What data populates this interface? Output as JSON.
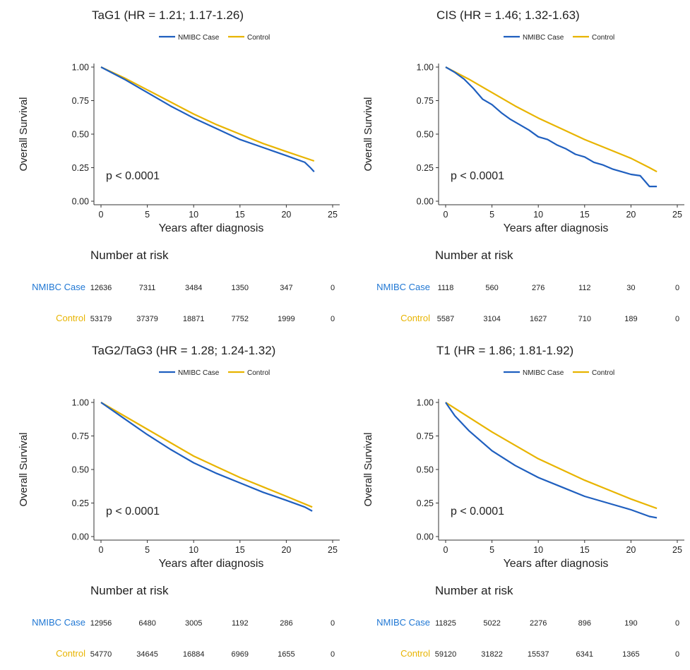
{
  "chart_data": [
    {
      "type": "line",
      "title": "TaG1 (HR = 1.21; 1.17-1.26)",
      "xlabel": "Years after diagnosis",
      "ylabel": "Overall Survival",
      "xlim": [
        0,
        25
      ],
      "ylim": [
        0,
        1
      ],
      "xticks": [
        "0",
        "5",
        "10",
        "15",
        "20",
        "25"
      ],
      "yticks": [
        "0.00",
        "0.25",
        "0.50",
        "0.75",
        "1.00"
      ],
      "legend_position": "top",
      "grid": false,
      "p_value": "p < 0.0001",
      "series": [
        {
          "name": "NMIBC Case",
          "color": "#1f5fbf",
          "x": [
            0,
            2.5,
            5,
            7.5,
            10,
            12.5,
            15,
            17.5,
            20,
            22,
            22.6,
            23
          ],
          "y": [
            1.0,
            0.91,
            0.81,
            0.71,
            0.62,
            0.54,
            0.46,
            0.4,
            0.34,
            0.29,
            0.25,
            0.22
          ]
        },
        {
          "name": "Control",
          "color": "#e8b400",
          "x": [
            0,
            2.5,
            5,
            7.5,
            10,
            12.5,
            15,
            17.5,
            20,
            23
          ],
          "y": [
            1.0,
            0.92,
            0.83,
            0.74,
            0.65,
            0.57,
            0.5,
            0.43,
            0.37,
            0.3
          ]
        }
      ],
      "risk_table": {
        "title": "Number at risk",
        "times": [
          0,
          5,
          10,
          15,
          20,
          25
        ],
        "rows": [
          {
            "label": "NMIBC Case",
            "color": "#1f77d4",
            "values": [
              "12636",
              "7311",
              "3484",
              "1350",
              "347",
              "0"
            ]
          },
          {
            "label": "Control",
            "color": "#e8b400",
            "values": [
              "53179",
              "37379",
              "18871",
              "7752",
              "1999",
              "0"
            ]
          }
        ]
      }
    },
    {
      "type": "line",
      "title": "CIS (HR = 1.46; 1.32-1.63)",
      "xlabel": "Years after diagnosis",
      "ylabel": "Overall Survival",
      "xlim": [
        0,
        25
      ],
      "ylim": [
        0,
        1
      ],
      "xticks": [
        "0",
        "5",
        "10",
        "15",
        "20",
        "25"
      ],
      "yticks": [
        "0.00",
        "0.25",
        "0.50",
        "0.75",
        "1.00"
      ],
      "legend_position": "top",
      "grid": false,
      "p_value": "p < 0.0001",
      "series": [
        {
          "name": "NMIBC Case",
          "color": "#1f5fbf",
          "x": [
            0,
            1,
            2,
            3,
            4,
            5,
            6,
            7,
            8,
            9,
            10,
            11,
            12,
            13,
            14,
            15,
            16,
            17,
            18,
            19,
            20,
            21,
            21.5,
            22,
            22.8
          ],
          "y": [
            1.0,
            0.96,
            0.91,
            0.84,
            0.76,
            0.72,
            0.66,
            0.61,
            0.57,
            0.53,
            0.48,
            0.46,
            0.42,
            0.39,
            0.35,
            0.33,
            0.29,
            0.27,
            0.24,
            0.22,
            0.2,
            0.19,
            0.15,
            0.11,
            0.11
          ]
        },
        {
          "name": "Control",
          "color": "#e8b400",
          "x": [
            0,
            2.5,
            5,
            7.5,
            10,
            12.5,
            15,
            17.5,
            20,
            22,
            22.8
          ],
          "y": [
            1.0,
            0.91,
            0.81,
            0.71,
            0.62,
            0.54,
            0.46,
            0.39,
            0.32,
            0.25,
            0.22
          ]
        }
      ],
      "risk_table": {
        "title": "Number at risk",
        "times": [
          0,
          5,
          10,
          15,
          20,
          25
        ],
        "rows": [
          {
            "label": "NMIBC Case",
            "color": "#1f77d4",
            "values": [
              "1118",
              "560",
              "276",
              "112",
              "30",
              "0"
            ]
          },
          {
            "label": "Control",
            "color": "#e8b400",
            "values": [
              "5587",
              "3104",
              "1627",
              "710",
              "189",
              "0"
            ]
          }
        ]
      }
    },
    {
      "type": "line",
      "title": "TaG2/TaG3 (HR = 1.28; 1.24-1.32)",
      "xlabel": "Years after diagnosis",
      "ylabel": "Overall Survival",
      "xlim": [
        0,
        25
      ],
      "ylim": [
        0,
        1
      ],
      "xticks": [
        "0",
        "5",
        "10",
        "15",
        "20",
        "25"
      ],
      "yticks": [
        "0.00",
        "0.25",
        "0.50",
        "0.75",
        "1.00"
      ],
      "legend_position": "top",
      "grid": false,
      "p_value": "p < 0.0001",
      "series": [
        {
          "name": "NMIBC Case",
          "color": "#1f5fbf",
          "x": [
            0,
            2.5,
            5,
            7.5,
            10,
            12.5,
            15,
            17.5,
            20,
            22,
            22.8
          ],
          "y": [
            1.0,
            0.88,
            0.76,
            0.65,
            0.55,
            0.47,
            0.4,
            0.33,
            0.27,
            0.22,
            0.19
          ]
        },
        {
          "name": "Control",
          "color": "#e8b400",
          "x": [
            0,
            2.5,
            5,
            7.5,
            10,
            12.5,
            15,
            17.5,
            20,
            22.8
          ],
          "y": [
            1.0,
            0.9,
            0.8,
            0.7,
            0.6,
            0.52,
            0.44,
            0.37,
            0.3,
            0.22
          ]
        }
      ],
      "risk_table": {
        "title": "Number at risk",
        "times": [
          0,
          5,
          10,
          15,
          20,
          25
        ],
        "rows": [
          {
            "label": "NMIBC Case",
            "color": "#1f77d4",
            "values": [
              "12956",
              "6480",
              "3005",
              "1192",
              "286",
              "0"
            ]
          },
          {
            "label": "Control",
            "color": "#e8b400",
            "values": [
              "54770",
              "34645",
              "16884",
              "6969",
              "1655",
              "0"
            ]
          }
        ]
      }
    },
    {
      "type": "line",
      "title": "T1 (HR = 1.86; 1.81-1.92)",
      "xlabel": "Years after diagnosis",
      "ylabel": "Overall Survival",
      "xlim": [
        0,
        25
      ],
      "ylim": [
        0,
        1
      ],
      "xticks": [
        "0",
        "5",
        "10",
        "15",
        "20",
        "25"
      ],
      "yticks": [
        "0.00",
        "0.25",
        "0.50",
        "0.75",
        "1.00"
      ],
      "legend_position": "top",
      "grid": false,
      "p_value": "p < 0.0001",
      "series": [
        {
          "name": "NMIBC Case",
          "color": "#1f5fbf",
          "x": [
            0,
            1,
            2.5,
            5,
            7.5,
            10,
            12.5,
            15,
            17.5,
            20,
            22,
            22.8
          ],
          "y": [
            1.0,
            0.9,
            0.79,
            0.64,
            0.53,
            0.44,
            0.37,
            0.3,
            0.25,
            0.2,
            0.15,
            0.14
          ]
        },
        {
          "name": "Control",
          "color": "#e8b400",
          "x": [
            0,
            2.5,
            5,
            7.5,
            10,
            12.5,
            15,
            17.5,
            20,
            22.8
          ],
          "y": [
            1.0,
            0.89,
            0.78,
            0.68,
            0.58,
            0.5,
            0.42,
            0.35,
            0.28,
            0.21
          ]
        }
      ],
      "risk_table": {
        "title": "Number at risk",
        "times": [
          0,
          5,
          10,
          15,
          20,
          25
        ],
        "rows": [
          {
            "label": "NMIBC Case",
            "color": "#1f77d4",
            "values": [
              "11825",
              "5022",
              "2276",
              "896",
              "190",
              "0"
            ]
          },
          {
            "label": "Control",
            "color": "#e8b400",
            "values": [
              "59120",
              "31822",
              "15537",
              "6341",
              "1365",
              "0"
            ]
          }
        ]
      }
    }
  ]
}
